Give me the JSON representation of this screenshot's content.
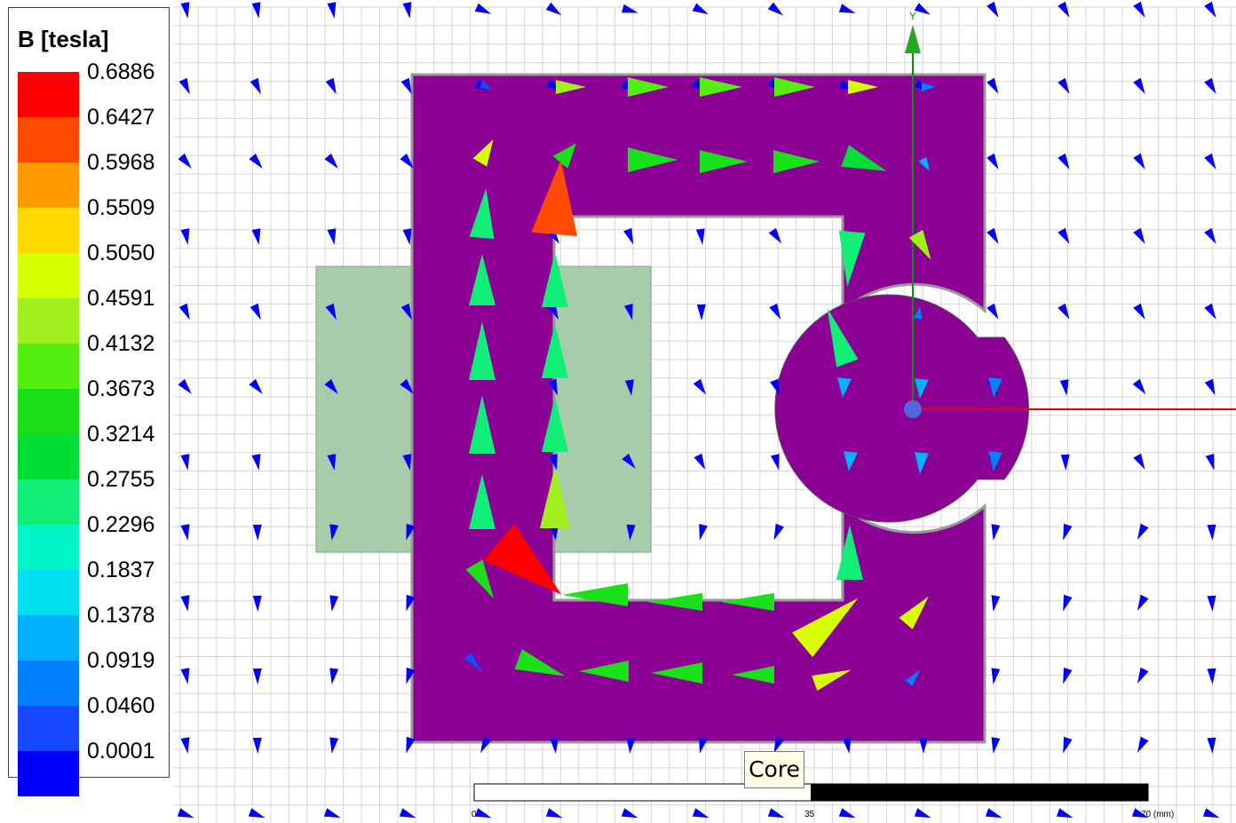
{
  "legend": {
    "title": "B [tesla]",
    "entries": [
      {
        "label": "0.6886",
        "color": "#ff0000"
      },
      {
        "label": "0.6427",
        "color": "#ff4a00"
      },
      {
        "label": "0.5968",
        "color": "#ff9900"
      },
      {
        "label": "0.5509",
        "color": "#ffd800"
      },
      {
        "label": "0.5050",
        "color": "#d8ff00"
      },
      {
        "label": "0.4591",
        "color": "#a0f020"
      },
      {
        "label": "0.4132",
        "color": "#55ee11"
      },
      {
        "label": "0.3673",
        "color": "#1ae01a"
      },
      {
        "label": "0.3214",
        "color": "#00dd33"
      },
      {
        "label": "0.2755",
        "color": "#11ee77"
      },
      {
        "label": "0.2296",
        "color": "#00f5c8"
      },
      {
        "label": "0.1837",
        "color": "#00e0f0"
      },
      {
        "label": "0.1378",
        "color": "#00b0ff"
      },
      {
        "label": "0.0919",
        "color": "#0080ff"
      },
      {
        "label": "0.0460",
        "color": "#1548ff"
      },
      {
        "label": "0.0001",
        "color": "#0000ff"
      }
    ]
  },
  "tooltip": {
    "text": "Core"
  },
  "scale_bar": {
    "ticks": [
      "0",
      "35",
      "70 (mm)"
    ]
  },
  "axes": {
    "y_label": "Y"
  },
  "colors": {
    "core": "#8c0095",
    "coil": "#a6ccaa",
    "grid": "#d4d4dc",
    "x_axis": "#ee0000",
    "y_axis": "#009900",
    "origin": "#5566dd"
  }
}
